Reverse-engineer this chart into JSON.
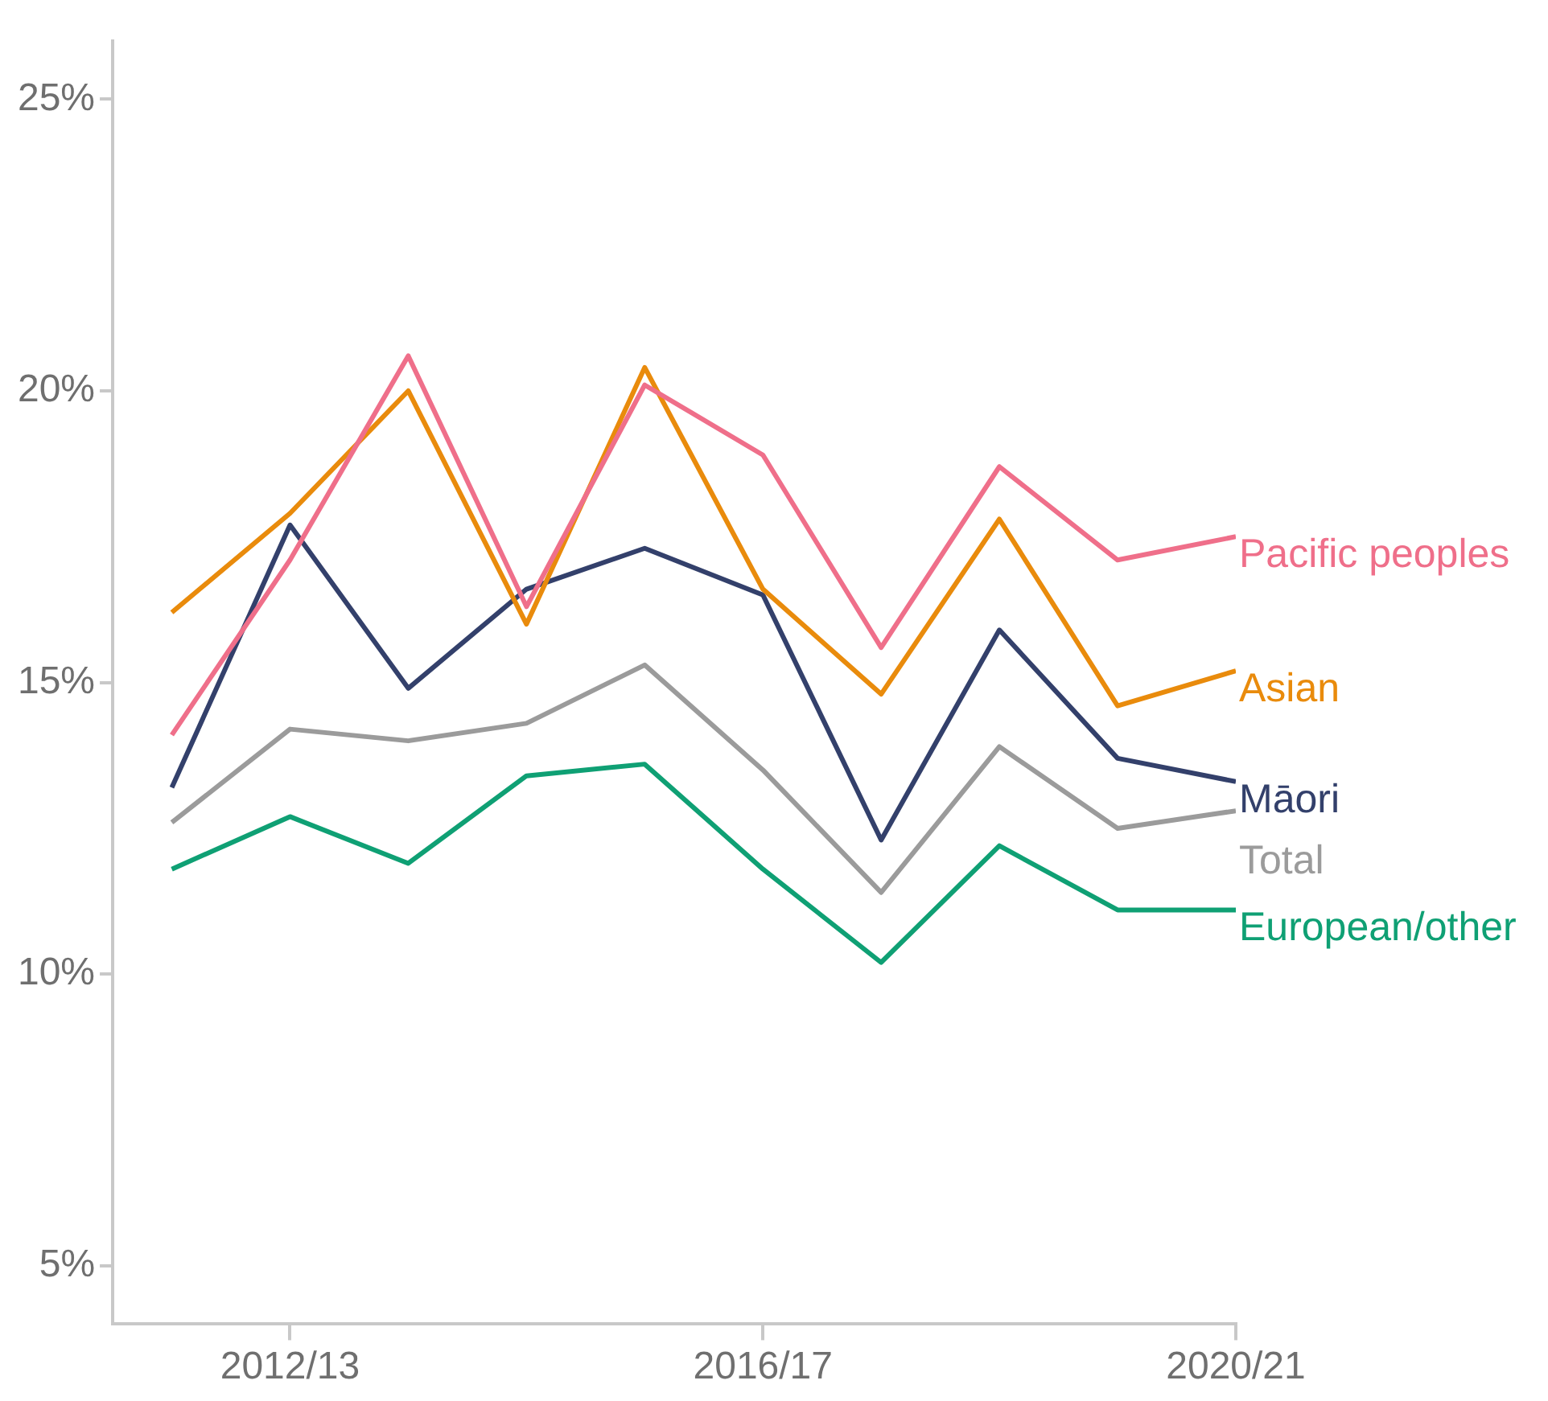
{
  "chart_data": {
    "type": "line",
    "categories": [
      null,
      "2012/13",
      null,
      null,
      null,
      "2016/17",
      null,
      null,
      null,
      "2020/21"
    ],
    "ylim": [
      4,
      26
    ],
    "yticks": [
      {
        "value": 5,
        "label": "5%"
      },
      {
        "value": 10,
        "label": "10%"
      },
      {
        "value": 15,
        "label": "15%"
      },
      {
        "value": 20,
        "label": "20%"
      },
      {
        "value": 25,
        "label": "25%"
      }
    ],
    "grid": false,
    "legend": false,
    "marker": "none",
    "line_style": "solid",
    "series": [
      {
        "name": "Pacific peoples",
        "color": "#ef6f8a",
        "values": [
          14.1,
          17.1,
          20.6,
          16.3,
          20.1,
          18.9,
          15.6,
          18.7,
          17.1,
          17.5
        ]
      },
      {
        "name": "Asian",
        "color": "#e98b0c",
        "values": [
          16.2,
          17.9,
          20.0,
          16.0,
          20.4,
          16.6,
          14.8,
          17.8,
          14.6,
          15.2
        ]
      },
      {
        "name": "Māori",
        "color": "#33406b",
        "values": [
          13.2,
          17.7,
          14.9,
          16.6,
          17.3,
          16.5,
          12.3,
          15.9,
          13.7,
          13.3
        ]
      },
      {
        "name": "Total",
        "color": "#9b9b9b",
        "values": [
          12.6,
          14.2,
          14.0,
          14.3,
          15.3,
          13.5,
          11.4,
          13.9,
          12.5,
          12.8
        ]
      },
      {
        "name": "European/other",
        "color": "#0fa074",
        "values": [
          11.8,
          12.7,
          11.9,
          13.4,
          13.6,
          11.8,
          10.2,
          12.2,
          11.1,
          11.1
        ]
      }
    ]
  }
}
